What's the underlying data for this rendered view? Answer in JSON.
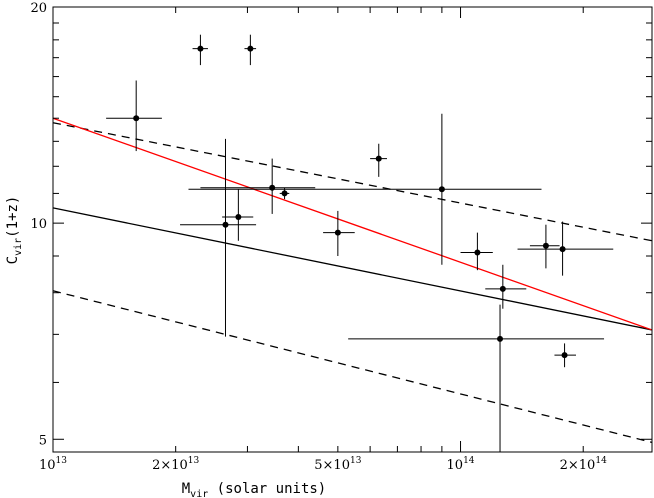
{
  "chart_data": {
    "type": "scatter",
    "title": "",
    "xlabel": "M",
    "xlabel_sub": "vir",
    "xlabel_rest": " (solar units)",
    "ylabel": "C",
    "ylabel_sub": "vir",
    "ylabel_rest": "(1+z)",
    "xscale": "log",
    "yscale": "log",
    "xlim": [
      10000000000000.0,
      295000000000000.0
    ],
    "ylim": [
      4.8,
      20.0
    ],
    "grid": false,
    "x_ticks": [
      {
        "value": 10000000000000.0,
        "mant": "",
        "exp": "13"
      },
      {
        "value": 20000000000000.0,
        "mant": "2×",
        "exp": "13"
      },
      {
        "value": 50000000000000.0,
        "mant": "5×",
        "exp": "13"
      },
      {
        "value": 100000000000000.0,
        "mant": "",
        "exp": "14"
      },
      {
        "value": 200000000000000.0,
        "mant": "2×",
        "exp": "14"
      }
    ],
    "y_ticks": [
      {
        "value": 5,
        "label": "5"
      },
      {
        "value": 10,
        "label": "10"
      },
      {
        "value": 20,
        "label": "20"
      }
    ],
    "points": [
      {
        "x": 16000000000000.0,
        "y": 14.0,
        "xerr": [
          13500000000000.0,
          18500000000000.0
        ],
        "yerr": [
          12.6,
          15.8
        ]
      },
      {
        "x": 23000000000000.0,
        "y": 17.5,
        "xerr": [
          22000000000000.0,
          24000000000000.0
        ],
        "yerr": [
          16.6,
          18.3
        ]
      },
      {
        "x": 30500000000000.0,
        "y": 17.5,
        "xerr": [
          29500000000000.0,
          31500000000000.0
        ],
        "yerr": [
          16.6,
          18.3
        ]
      },
      {
        "x": 26500000000000.0,
        "y": 9.95,
        "xerr": [
          20500000000000.0,
          31500000000000.0
        ],
        "yerr": [
          6.95,
          13.1
        ]
      },
      {
        "x": 28500000000000.0,
        "y": 10.2,
        "xerr": [
          26000000000000.0,
          31000000000000.0
        ],
        "yerr": [
          9.45,
          11.15
        ]
      },
      {
        "x": 34500000000000.0,
        "y": 11.2,
        "xerr": [
          23000000000000.0,
          44000000000000.0
        ],
        "yerr": [
          10.3,
          12.3
        ]
      },
      {
        "x": 37000000000000.0,
        "y": 11.0,
        "xerr": [
          36000000000000.0,
          38000000000000.0
        ],
        "yerr": [
          10.8,
          11.2
        ]
      },
      {
        "x": 50000000000000.0,
        "y": 9.7,
        "xerr": [
          46000000000000.0,
          55000000000000.0
        ],
        "yerr": [
          9.0,
          10.4
        ]
      },
      {
        "x": 63000000000000.0,
        "y": 12.3,
        "xerr": [
          60000000000000.0,
          66000000000000.0
        ],
        "yerr": [
          11.6,
          12.9
        ]
      },
      {
        "x": 90000000000000.0,
        "y": 11.15,
        "xerr": [
          21500000000000.0,
          158000000000000.0
        ],
        "yerr": [
          8.75,
          14.2
        ]
      },
      {
        "x": 110000000000000.0,
        "y": 9.1,
        "xerr": [
          100000000000000.0,
          120000000000000.0
        ],
        "yerr": [
          8.6,
          9.7
        ]
      },
      {
        "x": 127000000000000.0,
        "y": 8.1,
        "xerr": [
          115000000000000.0,
          145000000000000.0
        ],
        "yerr": [
          7.6,
          8.75
        ]
      },
      {
        "x": 125000000000000.0,
        "y": 6.9,
        "xerr": [
          53000000000000.0,
          225000000000000.0
        ],
        "yerr": [
          4.8,
          7.7
        ]
      },
      {
        "x": 162000000000000.0,
        "y": 9.3,
        "xerr": [
          148000000000000.0,
          175000000000000.0
        ],
        "yerr": [
          8.65,
          9.95
        ]
      },
      {
        "x": 178000000000000.0,
        "y": 9.2,
        "xerr": [
          138000000000000.0,
          237000000000000.0
        ],
        "yerr": [
          8.45,
          10.05
        ]
      },
      {
        "x": 180000000000000.0,
        "y": 6.55,
        "xerr": [
          170000000000000.0,
          192000000000000.0
        ],
        "yerr": [
          6.3,
          6.8
        ]
      }
    ],
    "lines": [
      {
        "name": "",
        "color": "#000000",
        "dash": "solid",
        "points": [
          [
            10000000000000.0,
            10.5
          ],
          [
            295000000000000.0,
            7.1
          ]
        ]
      },
      {
        "name": "",
        "color": "#000000",
        "dash": "dashed",
        "points": [
          [
            10000000000000.0,
            13.8
          ],
          [
            295000000000000.0,
            9.45
          ]
        ]
      },
      {
        "name": "",
        "color": "#000000",
        "dash": "dashed",
        "points": [
          [
            10000000000000.0,
            8.05
          ],
          [
            295000000000000.0,
            4.95
          ]
        ]
      },
      {
        "name": "",
        "color": "#ff0000",
        "dash": "solid",
        "points": [
          [
            10000000000000.0,
            14.0
          ],
          [
            295000000000000.0,
            7.1
          ]
        ]
      }
    ]
  }
}
